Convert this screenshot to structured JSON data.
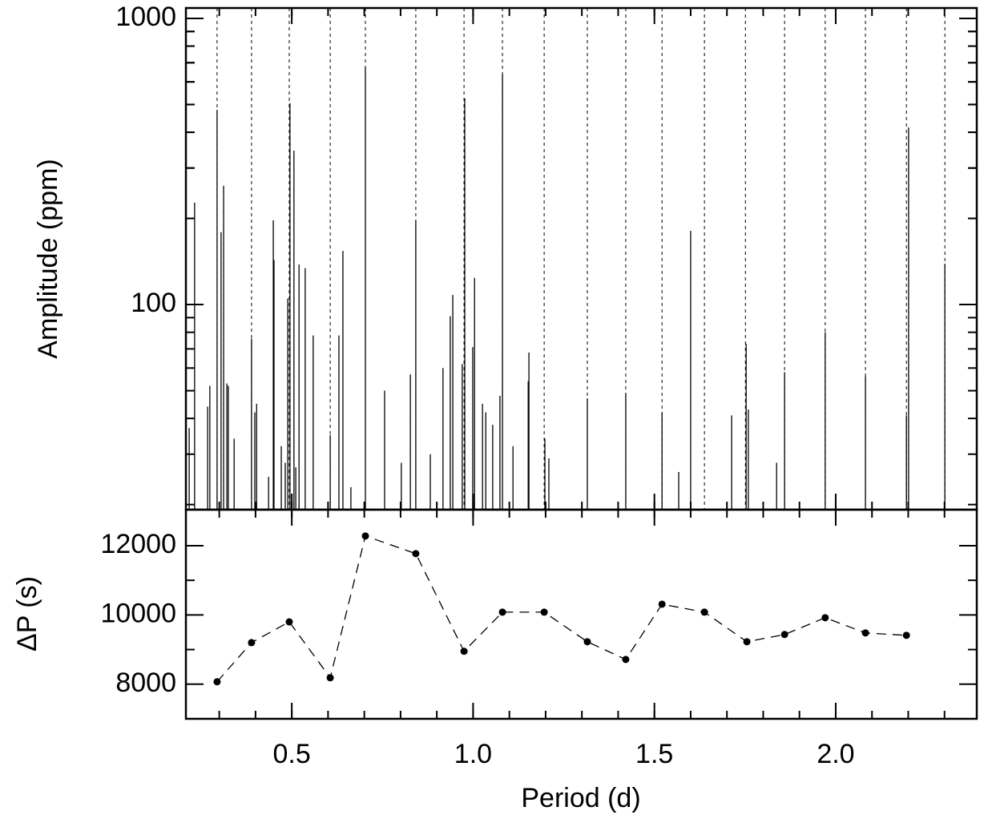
{
  "chart_data": [
    {
      "type": "stem",
      "ylabel": "Amplitude (ppm)",
      "log_y": true,
      "xlim": [
        0.208,
        2.389
      ],
      "ylim": [
        19.2,
        1087
      ],
      "yticks": [
        100,
        1000
      ],
      "color": "#000000",
      "x": [
        0.217,
        0.232,
        0.268,
        0.274,
        0.294,
        0.305,
        0.312,
        0.321,
        0.325,
        0.341,
        0.389,
        0.398,
        0.403,
        0.436,
        0.449,
        0.451,
        0.471,
        0.482,
        0.489,
        0.495,
        0.506,
        0.511,
        0.52,
        0.537,
        0.559,
        0.606,
        0.63,
        0.641,
        0.663,
        0.703,
        0.756,
        0.802,
        0.827,
        0.842,
        0.882,
        0.917,
        0.937,
        0.944,
        0.97,
        0.977,
        0.999,
        1.004,
        1.026,
        1.035,
        1.054,
        1.074,
        1.081,
        1.11,
        1.152,
        1.154,
        1.198,
        1.209,
        1.315,
        1.421,
        1.521,
        1.567,
        1.6,
        1.713,
        1.753,
        1.759,
        1.837,
        1.859,
        1.971,
        2.082,
        2.195,
        2.201,
        2.301
      ],
      "values": [
        37,
        227,
        44,
        52,
        479,
        179,
        260,
        53,
        52,
        34,
        76,
        42,
        45,
        25,
        197,
        143,
        32,
        28,
        105,
        505,
        345,
        27,
        138,
        134,
        78,
        35,
        78,
        154,
        23,
        675,
        50,
        28,
        57,
        196,
        30,
        60,
        91,
        108,
        62,
        525,
        71,
        124,
        45,
        42,
        38,
        48,
        637,
        32,
        54,
        68,
        34,
        29,
        47,
        49,
        42,
        26,
        181,
        41,
        73,
        43,
        28,
        58,
        80,
        56,
        41,
        416,
        139
      ],
      "vlines": [
        0.294,
        0.389,
        0.493,
        0.606,
        0.703,
        0.842,
        0.975,
        1.081,
        1.196,
        1.315,
        1.421,
        1.521,
        1.638,
        1.751,
        1.859,
        1.971,
        2.082,
        2.195,
        2.301
      ]
    },
    {
      "type": "line",
      "xlabel": "Period (d)",
      "ylabel": "ΔP (s)",
      "xlim": [
        0.208,
        2.389
      ],
      "ylim": [
        7000,
        13040
      ],
      "xticks": [
        0.5,
        {
          "value": 1,
          "label": "1.0"
        },
        1.5,
        {
          "value": 2,
          "label": "2.0"
        }
      ],
      "yticks": [
        8000,
        10000,
        12000
      ],
      "color": "#000000",
      "x": [
        0.294,
        0.389,
        0.493,
        0.606,
        0.703,
        0.842,
        0.975,
        1.081,
        1.196,
        1.315,
        1.421,
        1.521,
        1.638,
        1.755,
        1.859,
        1.971,
        2.082,
        2.195
      ],
      "values": [
        8070,
        9200,
        9800,
        8185,
        12280,
        11770,
        8950,
        10080,
        10080,
        9225,
        8715,
        10310,
        10080,
        9225,
        9435,
        9920,
        9480,
        9410
      ]
    }
  ]
}
